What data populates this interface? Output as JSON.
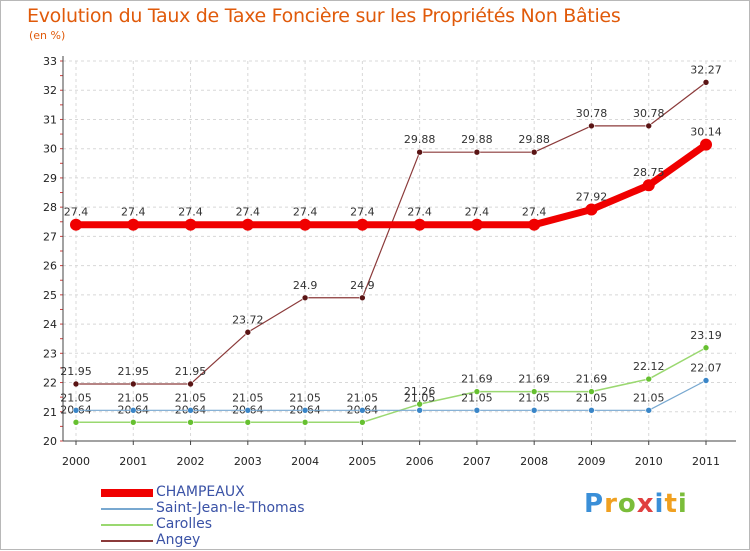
{
  "title": "Evolution du Taux de Taxe Foncière sur les Propriétés Non Bâties",
  "unit_label": "(en %)",
  "brand": {
    "letters": [
      "P",
      "r",
      "o",
      "x",
      "i",
      "t",
      "i"
    ],
    "colors": [
      "#3a8fd8",
      "#f0a020",
      "#7bbd3a",
      "#e04040",
      "#3a8fd8",
      "#f0a020",
      "#7bbd3a"
    ]
  },
  "chart_data": {
    "type": "line",
    "title": "Evolution du Taux de Taxe Foncière sur les Propriétés Non Bâties",
    "ylabel": "(en %)",
    "xlabel": "",
    "ylim": [
      20,
      33
    ],
    "yticks": [
      20,
      21,
      22,
      23,
      24,
      25,
      26,
      27,
      28,
      29,
      30,
      31,
      32,
      33
    ],
    "categories": [
      "2000",
      "2001",
      "2002",
      "2003",
      "2004",
      "2005",
      "2006",
      "2007",
      "2008",
      "2009",
      "2010",
      "2011"
    ],
    "series": [
      {
        "name": "Angey",
        "color": "#8b3a3a",
        "dot": "#5a1414",
        "width": 1.2,
        "r": 3,
        "values": [
          21.95,
          21.95,
          21.95,
          23.72,
          24.9,
          24.9,
          29.88,
          29.88,
          29.88,
          30.78,
          30.78,
          32.27
        ],
        "labels": [
          "21.95",
          "21.95",
          "21.95",
          "23.72",
          "24.9",
          "24.9",
          "29.88",
          "29.88",
          "29.88",
          "30.78",
          "30.78",
          "32.27"
        ]
      },
      {
        "name": "Carolles",
        "color": "#9ad870",
        "dot": "#66c030",
        "width": 1.5,
        "r": 3,
        "values": [
          20.64,
          20.64,
          20.64,
          20.64,
          20.64,
          20.64,
          21.26,
          21.69,
          21.69,
          21.69,
          22.12,
          23.19
        ],
        "labels": [
          "20.64",
          "20.64",
          "20.64",
          "20.64",
          "20.64",
          "20.64",
          "21.26",
          "21.69",
          "21.69",
          "21.69",
          "22.12",
          "23.19"
        ]
      },
      {
        "name": "Saint-Jean-le-Thomas",
        "color": "#78a8d0",
        "dot": "#3a86c8",
        "width": 1.2,
        "r": 3,
        "values": [
          21.05,
          21.05,
          21.05,
          21.05,
          21.05,
          21.05,
          21.05,
          21.05,
          21.05,
          21.05,
          21.05,
          22.07
        ],
        "labels": [
          "21.05",
          "21.05",
          "21.05",
          "21.05",
          "21.05",
          "21.05",
          "21.05",
          "21.05",
          "21.05",
          "21.05",
          "21.05",
          "22.07"
        ]
      },
      {
        "name": "CHAMPEAUX",
        "color": "#f00000",
        "dot": "#f00000",
        "width": 7,
        "r": 6,
        "values": [
          27.4,
          27.4,
          27.4,
          27.4,
          27.4,
          27.4,
          27.4,
          27.4,
          27.4,
          27.92,
          28.75,
          30.14
        ],
        "labels": [
          "27.4",
          "27.4",
          "27.4",
          "27.4",
          "27.4",
          "27.4",
          "27.4",
          "27.4",
          "27.4",
          "27.92",
          "28.75",
          "30.14"
        ]
      }
    ],
    "legend": [
      {
        "name": "CHAMPEAUX",
        "color": "#f00000",
        "thickness": 8
      },
      {
        "name": "Saint-Jean-le-Thomas",
        "color": "#78a8d0",
        "thickness": 2
      },
      {
        "name": "Carolles",
        "color": "#9ad870",
        "thickness": 2
      },
      {
        "name": "Angey",
        "color": "#8b3a3a",
        "thickness": 2
      }
    ],
    "legend_position": "bottom-left"
  }
}
